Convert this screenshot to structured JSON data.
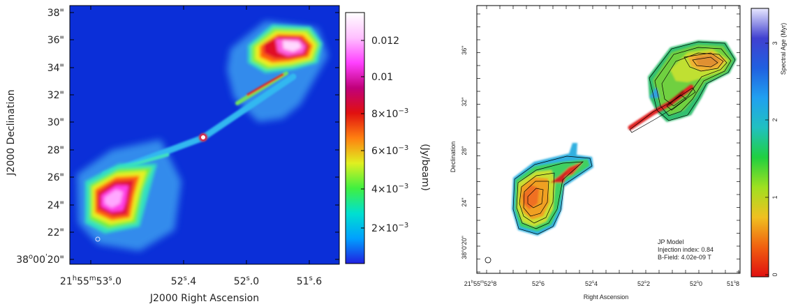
{
  "chart_data": [
    {
      "type": "heatmap",
      "xlabel": "J2000 Right Ascension",
      "ylabel": "J2000 Declination",
      "x_ticks": [
        {
          "h": "21",
          "m": "55",
          "s": "53",
          "frac": ".0"
        },
        {
          "s": "52",
          "frac": ".4"
        },
        {
          "s": "52",
          "frac": ".0"
        },
        {
          "s": "51",
          "frac": ".6"
        }
      ],
      "y_ticks": [
        "38\"",
        "36\"",
        "34\"",
        "32\"",
        "30\"",
        "28\"",
        "26\"",
        "24\"",
        "22\""
      ],
      "y_tick_first": {
        "deg": "38",
        "arcmin": "00",
        "arcsec": "20\""
      },
      "colorbar": {
        "label": "(Jy/beam)",
        "ticks": [
          {
            "mant": "0.012",
            "exp": ""
          },
          {
            "mant": "0.01",
            "exp": ""
          },
          {
            "mant": "8×10",
            "exp": "−3"
          },
          {
            "mant": "6×10",
            "exp": "−3"
          },
          {
            "mant": "4×10",
            "exp": "−3"
          },
          {
            "mant": "2×10",
            "exp": "−3"
          }
        ],
        "colors": [
          "#2020e0",
          "#00a0ff",
          "#00e0d0",
          "#40f040",
          "#e0f020",
          "#ff8010",
          "#e01010",
          "#c0007a",
          "#ff40ff",
          "#ffc0ff",
          "#ffffff"
        ]
      },
      "background_color": "#0b2fd8"
    },
    {
      "type": "heatmap",
      "xlabel": "Right Ascension",
      "ylabel": "Declination",
      "x_ticks": [
        {
          "h": "21",
          "m": "55",
          "s": "52",
          "frac": "8"
        },
        {
          "s": "52",
          "frac": "6"
        },
        {
          "s": "52",
          "frac": "4"
        },
        {
          "s": "52",
          "frac": "2"
        },
        {
          "s": "52",
          "frac": "0"
        },
        {
          "s": "51",
          "frac": "8"
        }
      ],
      "y_ticks": [
        "36\"",
        "32\"",
        "28\"",
        "24\"",
        "38°0'20\""
      ],
      "colorbar": {
        "label": "Spectral Age (Myr)",
        "ticks": [
          "3",
          "2",
          "1",
          "0"
        ],
        "colors": [
          "#e01010",
          "#f06010",
          "#f0c020",
          "#a0e020",
          "#20d040",
          "#20c0c0",
          "#20a0f0",
          "#2060e0",
          "#4040d0",
          "#e8e8ff"
        ]
      },
      "annotation": [
        "JP Model",
        "Injection index: 0.84",
        "B-Field: 4.02e-09 T"
      ]
    }
  ]
}
